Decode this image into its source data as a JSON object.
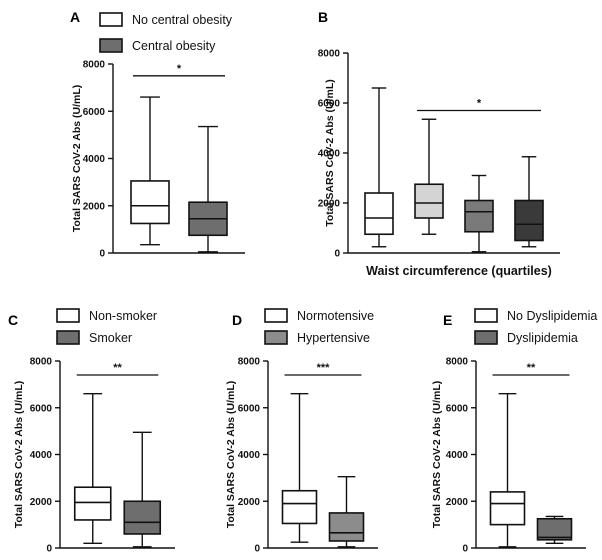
{
  "chart_data": [
    {
      "panel": "A",
      "type": "box",
      "ylabel": "Total SARS CoV-2 Abs (U/mL)",
      "ylim": [
        0,
        8000
      ],
      "yticks": [
        0,
        2000,
        4000,
        6000,
        8000
      ],
      "xlabel": "",
      "legend": [
        {
          "label": "No central obesity",
          "color": "#ffffff"
        },
        {
          "label": "Central obesity",
          "color": "#6e6e6e"
        }
      ],
      "series": [
        {
          "name": "No central obesity",
          "color": "#ffffff",
          "min": 350,
          "q1": 1250,
          "median": 2000,
          "q3": 3050,
          "max": 6600
        },
        {
          "name": "Central obesity",
          "color": "#6e6e6e",
          "min": 50,
          "q1": 750,
          "median": 1450,
          "q3": 2150,
          "max": 5350
        }
      ],
      "significance": [
        {
          "from": 0,
          "to": 1,
          "y": 7500,
          "label": "*"
        }
      ]
    },
    {
      "panel": "B",
      "type": "box",
      "ylabel": "Total SARS CoV-2 Abs (U/mL)",
      "ylim": [
        0,
        8000
      ],
      "yticks": [
        0,
        2000,
        4000,
        6000,
        8000
      ],
      "xlabel": "Waist circumference (quartiles)",
      "legend": [],
      "series": [
        {
          "name": "",
          "color": "#ffffff",
          "min": 250,
          "q1": 750,
          "median": 1400,
          "q3": 2400,
          "max": 6600
        },
        {
          "name": "",
          "color": "#d4d4d4",
          "min": 750,
          "q1": 1400,
          "median": 2000,
          "q3": 2750,
          "max": 5350
        },
        {
          "name": "",
          "color": "#7a7a7a",
          "min": 50,
          "q1": 850,
          "median": 1650,
          "q3": 2100,
          "max": 3100
        },
        {
          "name": "",
          "color": "#3a3a3a",
          "min": 250,
          "q1": 500,
          "median": 1150,
          "q3": 2100,
          "max": 3850
        }
      ],
      "significance": [
        {
          "from": 1,
          "to": 3,
          "y": 5700,
          "label": "*"
        }
      ]
    },
    {
      "panel": "C",
      "type": "box",
      "ylabel": "Total SARS CoV-2 Abs (U/mL)",
      "ylim": [
        0,
        8000
      ],
      "yticks": [
        0,
        2000,
        4000,
        6000,
        8000
      ],
      "xlabel": "",
      "legend": [
        {
          "label": "Non-smoker",
          "color": "#ffffff"
        },
        {
          "label": "Smoker",
          "color": "#6e6e6e"
        }
      ],
      "series": [
        {
          "name": "Non-smoker",
          "color": "#ffffff",
          "min": 200,
          "q1": 1200,
          "median": 1950,
          "q3": 2600,
          "max": 6600
        },
        {
          "name": "Smoker",
          "color": "#6e6e6e",
          "min": 50,
          "q1": 600,
          "median": 1100,
          "q3": 2000,
          "max": 4950
        }
      ],
      "significance": [
        {
          "from": 0,
          "to": 1,
          "y": 7400,
          "label": "**"
        }
      ]
    },
    {
      "panel": "D",
      "type": "box",
      "ylabel": "Total SARS CoV-2 Abs (U/mL)",
      "ylim": [
        0,
        8000
      ],
      "yticks": [
        0,
        2000,
        4000,
        6000,
        8000
      ],
      "xlabel": "",
      "legend": [
        {
          "label": "Normotensive",
          "color": "#ffffff"
        },
        {
          "label": "Hypertensive",
          "color": "#8c8c8c"
        }
      ],
      "series": [
        {
          "name": "Normotensive",
          "color": "#ffffff",
          "min": 250,
          "q1": 1050,
          "median": 1900,
          "q3": 2450,
          "max": 6600
        },
        {
          "name": "Hypertensive",
          "color": "#8c8c8c",
          "min": 50,
          "q1": 300,
          "median": 650,
          "q3": 1500,
          "max": 3050
        }
      ],
      "significance": [
        {
          "from": 0,
          "to": 1,
          "y": 7400,
          "label": "***"
        }
      ]
    },
    {
      "panel": "E",
      "type": "box",
      "ylabel": "Total SARS CoV-2 Abs (U/mL)",
      "ylim": [
        0,
        8000
      ],
      "yticks": [
        0,
        2000,
        4000,
        6000,
        8000
      ],
      "xlabel": "",
      "legend": [
        {
          "label": "No Dyslipidemia",
          "color": "#ffffff"
        },
        {
          "label": "Dyslipidemia",
          "color": "#6e6e6e"
        }
      ],
      "series": [
        {
          "name": "No Dyslipidemia",
          "color": "#ffffff",
          "min": 50,
          "q1": 1000,
          "median": 1900,
          "q3": 2400,
          "max": 6600
        },
        {
          "name": "Dyslipidemia",
          "color": "#6e6e6e",
          "min": 200,
          "q1": 350,
          "median": 450,
          "q3": 1250,
          "max": 1350
        }
      ],
      "significance": [
        {
          "from": 0,
          "to": 1,
          "y": 7400,
          "label": "**"
        }
      ]
    }
  ]
}
